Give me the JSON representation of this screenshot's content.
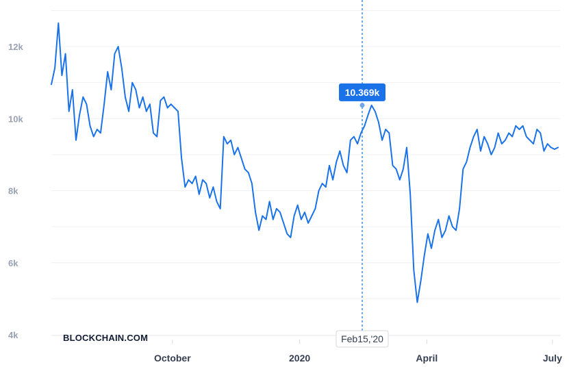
{
  "chart_data": {
    "type": "line",
    "xlabel": "",
    "ylabel": "",
    "x_tick_labels": [
      "October",
      "2020",
      "April",
      "July"
    ],
    "y_tick_labels": [
      "4k",
      "6k",
      "8k",
      "10k",
      "12k"
    ],
    "y_ticks": [
      4000,
      6000,
      8000,
      10000,
      12000
    ],
    "ylim": [
      4000,
      13000
    ],
    "grid": true,
    "series": [
      {
        "values": [
          10950,
          11400,
          12650,
          11200,
          11800,
          10200,
          10800,
          9400,
          10100,
          10600,
          10400,
          9800,
          9500,
          9700,
          9600,
          10400,
          11300,
          10800,
          11800,
          12000,
          11400,
          10600,
          10200,
          11000,
          10800,
          10300,
          10600,
          10200,
          10400,
          9600,
          9500,
          10500,
          10600,
          10300,
          10400,
          10300,
          10200,
          8900,
          8100,
          8300,
          8200,
          8400,
          7900,
          8300,
          8200,
          7800,
          8100,
          7700,
          7500,
          9500,
          9300,
          9400,
          9000,
          9200,
          8900,
          8600,
          8500,
          8200,
          7400,
          6900,
          7300,
          7200,
          7700,
          7200,
          7500,
          7400,
          7100,
          6800,
          6700,
          7300,
          7600,
          7200,
          7400,
          7100,
          7300,
          7500,
          8000,
          8200,
          8100,
          8700,
          8300,
          8800,
          9100,
          8700,
          8500,
          9400,
          9500,
          9300,
          9600,
          9800,
          10100,
          10369,
          10200,
          9900,
          9400,
          9700,
          9600,
          8700,
          8600,
          8300,
          8600,
          9200,
          7900,
          5800,
          4900,
          5500,
          6200,
          6800,
          6400,
          6900,
          7200,
          6700,
          6900,
          7300,
          7000,
          6900,
          7500,
          8600,
          8800,
          9200,
          9500,
          9700,
          9100,
          9500,
          9300,
          9000,
          9200,
          9600,
          9300,
          9400,
          9600,
          9500,
          9800,
          9700,
          9800,
          9500,
          9400,
          9300,
          9700,
          9600,
          9100,
          9300,
          9200,
          9150,
          9200
        ]
      }
    ],
    "tooltip": {
      "value_label": "10.369k",
      "date_label": "Feb15,'20",
      "point_value": 10369
    }
  },
  "branding": {
    "watermark": "BLOCKCHAIN.COM"
  },
  "colors": {
    "line": "#1a72e8",
    "tooltip": "#1a72e8",
    "grid": "#eef0f4"
  }
}
